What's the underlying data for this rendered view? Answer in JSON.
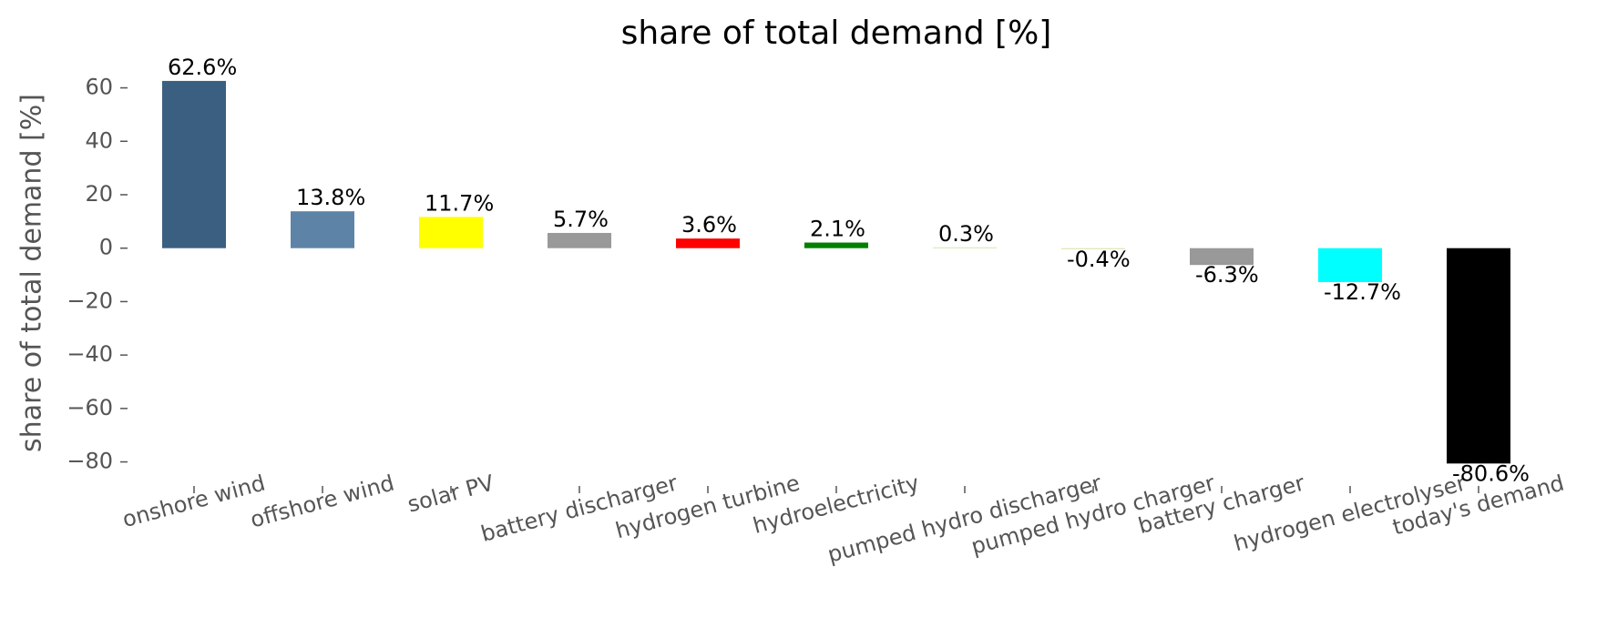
{
  "chart_data": {
    "type": "bar",
    "title": "share of total demand [%]",
    "ylabel": "share of total demand [%]",
    "categories": [
      "onshore wind",
      "offshore wind",
      "solar PV",
      "battery discharger",
      "hydrogen turbine",
      "hydroelectricity",
      "pumped hydro discharger",
      "pumped hydro charger",
      "battery charger",
      "hydrogen electrolyser",
      "today's demand"
    ],
    "values": [
      62.6,
      13.8,
      11.7,
      5.7,
      3.6,
      2.1,
      0.3,
      -0.4,
      -6.3,
      -12.7,
      -80.6
    ],
    "value_labels": [
      "62.6%",
      "13.8%",
      "11.7%",
      "5.7%",
      "3.6%",
      "2.1%",
      "0.3%",
      "-0.4%",
      "-6.3%",
      "-12.7%",
      "-80.6%"
    ],
    "colors": [
      "#3b5f81",
      "#5d84a6",
      "#ffff00",
      "#999999",
      "#ff0000",
      "#008000",
      "#c6e8a0",
      "#d8e8b0",
      "#999999",
      "#00ffff",
      "#000000"
    ],
    "ylim": [
      -89,
      67
    ],
    "yticks": [
      60,
      40,
      20,
      0,
      {
        "value": -20,
        "label": "−20"
      },
      {
        "value": -40,
        "label": "−40"
      },
      {
        "value": -60,
        "label": "−60"
      },
      {
        "value": -80,
        "label": "−80"
      }
    ]
  }
}
